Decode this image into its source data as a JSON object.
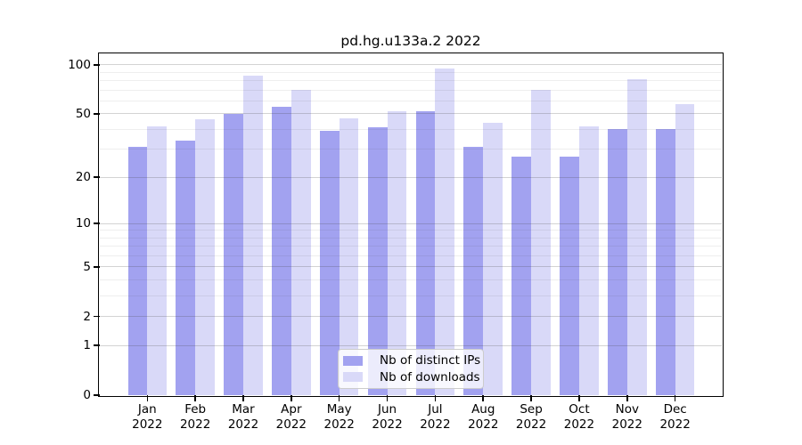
{
  "chart_data": {
    "type": "bar",
    "title": "pd.hg.u133a.2 2022",
    "categories": [
      "Jan",
      "Feb",
      "Mar",
      "Apr",
      "May",
      "Jun",
      "Jul",
      "Aug",
      "Sep",
      "Oct",
      "Nov",
      "Dec"
    ],
    "year_label": "2022",
    "series": [
      {
        "name": "Nb of distinct IPs",
        "color": "#a2a2f0",
        "values": [
          31,
          34,
          50,
          55,
          39,
          41,
          52,
          31,
          27,
          27,
          40,
          40
        ]
      },
      {
        "name": "Nb of downloads",
        "color": "#d9d9f8",
        "values": [
          42,
          46,
          86,
          70,
          47,
          52,
          95,
          44,
          70,
          42,
          82,
          57
        ]
      }
    ],
    "y_scale": "log1p",
    "y_axis_ticks": [
      0,
      1,
      2,
      5,
      10,
      20,
      50,
      100
    ],
    "y_minor_gridlines": [
      3,
      4,
      6,
      7,
      8,
      9,
      30,
      40,
      60,
      70,
      80,
      90
    ],
    "y_max": 116,
    "xlabel": "",
    "ylabel": "",
    "grid": "on",
    "legend_position": "lower center"
  }
}
